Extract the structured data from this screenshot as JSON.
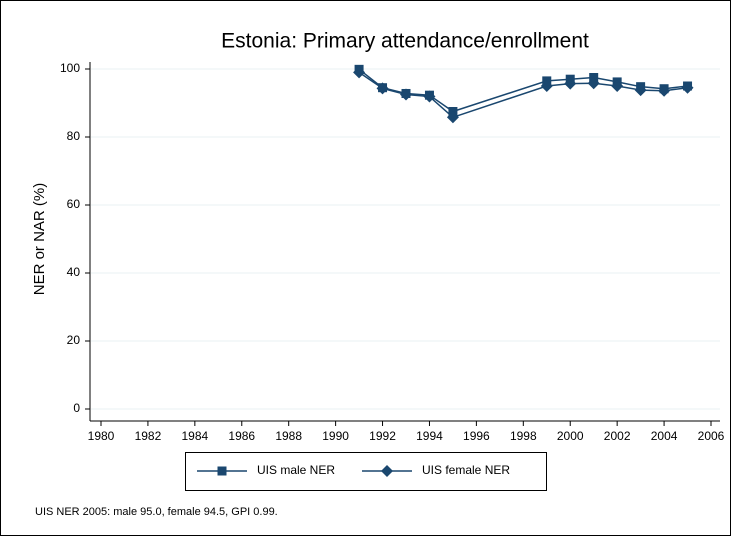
{
  "chart_data": {
    "type": "line",
    "title": "Estonia: Primary attendance/enrollment",
    "y_label": "NER or NAR (%)",
    "note": "UIS NER 2005: male 95.0, female 94.5, GPI 0.99.",
    "x": [
      1991,
      1992,
      1993,
      1994,
      1995,
      1999,
      2000,
      2001,
      2002,
      2003,
      2004,
      2005
    ],
    "series": [
      {
        "name": "UIS male NER",
        "color": "#1a476f",
        "marker": "square",
        "values": [
          99.9,
          94.5,
          92.8,
          92.3,
          87.5,
          96.5,
          97.0,
          97.5,
          96.2,
          94.8,
          94.2,
          95.0
        ]
      },
      {
        "name": "UIS female NER",
        "color": "#1a476f",
        "marker": "diamond",
        "values": [
          99.0,
          94.3,
          92.5,
          91.9,
          85.8,
          95.0,
          95.7,
          95.8,
          95.0,
          93.8,
          93.6,
          94.5
        ]
      }
    ],
    "xlim": [
      1980,
      2006
    ],
    "xticks": [
      1980,
      1982,
      1984,
      1986,
      1988,
      1990,
      1992,
      1994,
      1996,
      1998,
      2000,
      2002,
      2004,
      2006
    ],
    "ylim": [
      0,
      100
    ],
    "yticks": [
      0,
      20,
      40,
      60,
      80,
      100
    ],
    "grid": true,
    "legend": "bottom"
  }
}
